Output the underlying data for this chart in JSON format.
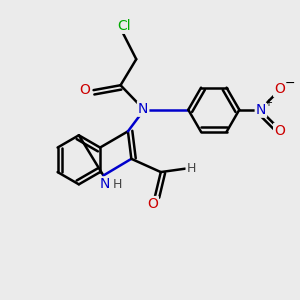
{
  "background_color": "#ebebeb",
  "atom_colors": {
    "C": "#000000",
    "N": "#0000cc",
    "O": "#cc0000",
    "Cl": "#00aa00",
    "H": "#444444"
  },
  "bond_color": "#000000",
  "bond_width": 1.8,
  "figsize": [
    3.0,
    3.0
  ],
  "dpi": 100,
  "xlim": [
    0.0,
    6.0
  ],
  "ylim": [
    0.0,
    6.0
  ]
}
